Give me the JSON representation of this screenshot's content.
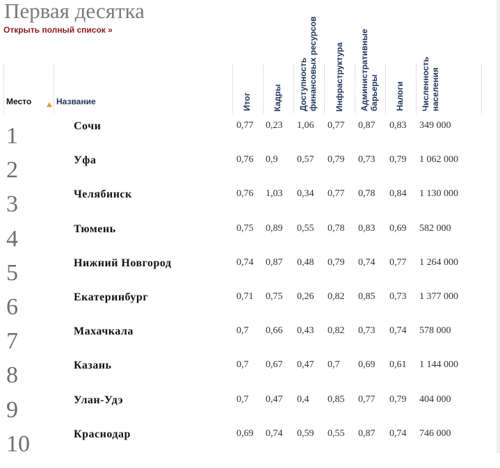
{
  "title": "Первая десятка",
  "full_list_link": "Открыть полный список »",
  "headers": {
    "rank": "Место",
    "name": "Название",
    "total": "Итог",
    "staff": "Кадры",
    "finance": "Доступность финансовых ресурсов",
    "infra": "Инфраструктура",
    "admin": "Административные барьеры",
    "taxes": "Налоги",
    "population": "Численность населения"
  },
  "sort_indicator_color": "#e0a030",
  "rows": [
    {
      "rank": "1",
      "name": "Сочи",
      "v": [
        "0,77",
        "0,23",
        "1,06",
        "0,77",
        "0,87",
        "0,83",
        "349 000"
      ]
    },
    {
      "rank": "2",
      "name": "Уфа",
      "v": [
        "0,76",
        "0,9",
        "0,57",
        "0,79",
        "0,73",
        "0,79",
        "1 062 000"
      ]
    },
    {
      "rank": "3",
      "name": "Челябинск",
      "v": [
        "0,76",
        "1,03",
        "0,34",
        "0,77",
        "0,78",
        "0,84",
        "1 130 000"
      ]
    },
    {
      "rank": "4",
      "name": "Тюмень",
      "v": [
        "0,75",
        "0,89",
        "0,55",
        "0,78",
        "0,83",
        "0,69",
        "582 000"
      ]
    },
    {
      "rank": "5",
      "name": "Нижний Новгород",
      "v": [
        "0,74",
        "0,87",
        "0,48",
        "0,79",
        "0,74",
        "0,77",
        "1 264 000"
      ]
    },
    {
      "rank": "6",
      "name": "Екатеринбург",
      "v": [
        "0,71",
        "0,75",
        "0,26",
        "0,82",
        "0,85",
        "0,73",
        "1 377 000"
      ]
    },
    {
      "rank": "7",
      "name": "Махачкала",
      "v": [
        "0,7",
        "0,66",
        "0,43",
        "0,82",
        "0,73",
        "0,74",
        "578 000"
      ]
    },
    {
      "rank": "8",
      "name": "Казань",
      "v": [
        "0,7",
        "0,67",
        "0,47",
        "0,7",
        "0,69",
        "0,61",
        "1 144 000"
      ]
    },
    {
      "rank": "9",
      "name": "Улан-Удэ",
      "v": [
        "0,7",
        "0,47",
        "0,4",
        "0,85",
        "0,77",
        "0,79",
        "404 000"
      ]
    },
    {
      "rank": "10",
      "name": "Краснодар",
      "v": [
        "0,69",
        "0,74",
        "0,59",
        "0,55",
        "0,87",
        "0,74",
        "746 000"
      ]
    }
  ]
}
